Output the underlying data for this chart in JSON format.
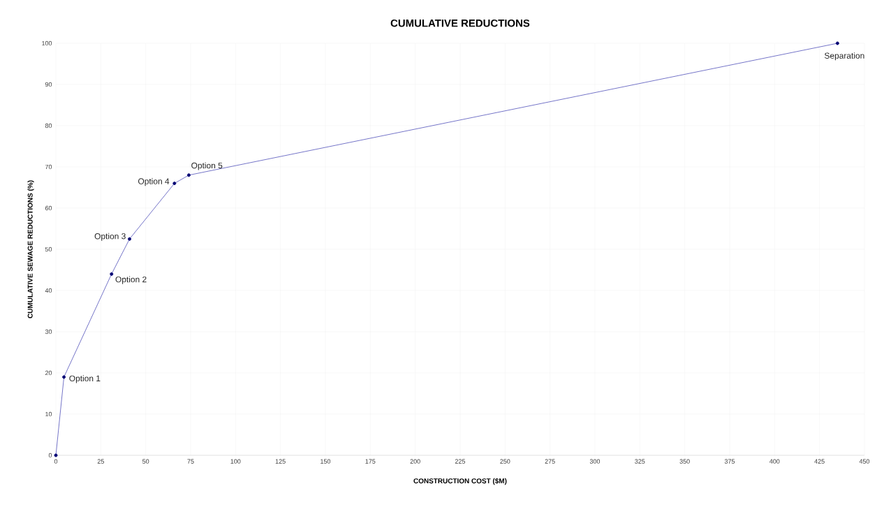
{
  "chart_data": {
    "type": "line",
    "title": "CUMULATIVE REDUCTIONS",
    "xlabel": "CONSTRUCTION COST ($M)",
    "ylabel": "CUMULATIVE SEWAGE REDUCTIONS (%)",
    "x": [
      0,
      4.5,
      31,
      41,
      66,
      74,
      435
    ],
    "series": [
      {
        "color": "#7474c8",
        "values": [
          0,
          19,
          44,
          52.5,
          66,
          68,
          100
        ]
      }
    ],
    "xlim": [
      0,
      450
    ],
    "xticks": [
      0,
      25,
      50,
      75,
      100,
      125,
      150,
      175,
      200,
      225,
      250,
      275,
      300,
      325,
      350,
      375,
      400,
      425,
      450
    ],
    "ylim": [
      0,
      100
    ],
    "yticks": [
      0,
      10,
      20,
      30,
      40,
      50,
      60,
      70,
      80,
      90,
      100
    ],
    "grid": true,
    "marker": "circle",
    "line_style": "solid",
    "annotations": [
      {
        "text": "Option 1",
        "x": 4.5,
        "y": 19
      },
      {
        "text": "Option 2",
        "x": 31,
        "y": 44
      },
      {
        "text": "Option 3",
        "x": 41,
        "y": 52.5
      },
      {
        "text": "Option 4",
        "x": 66,
        "y": 66
      },
      {
        "text": "Option 5",
        "x": 74,
        "y": 68
      },
      {
        "text": "Separation",
        "x": 435,
        "y": 100
      }
    ]
  }
}
